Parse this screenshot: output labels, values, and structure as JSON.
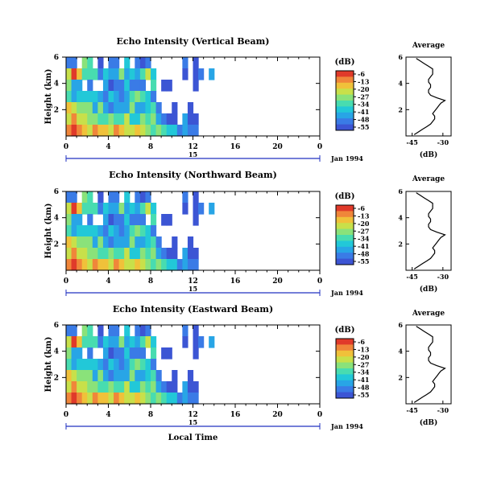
{
  "chart_data": [
    {
      "type": "heatmap",
      "title": "Echo Intensity (Vertical Beam)",
      "ylabel": "Height (km)",
      "yticks": [
        "6",
        "4",
        "2"
      ],
      "ylim": [
        0,
        6
      ],
      "xticks": [
        "0",
        "4",
        "8",
        "12",
        "16",
        "20",
        "0"
      ],
      "xlim": [
        0,
        24
      ],
      "day_label": "15",
      "date_label": "Jan 1994",
      "colorbar": {
        "unit": "(dB)",
        "labels": [
          "-6",
          "-13",
          "-20",
          "-27",
          "-34",
          "-41",
          "-48",
          "-55"
        ]
      },
      "profile": {
        "title": "Average",
        "xlabel": "(dB)",
        "xticks": [
          "-45",
          "-30"
        ],
        "yticks": [
          "6",
          "4",
          "2"
        ],
        "x": [
          -44,
          -42,
          -40,
          -38,
          -36,
          -35,
          -34,
          -34,
          -35,
          -34,
          -33,
          -32,
          -31,
          -29,
          -33,
          -36,
          -37,
          -37,
          -36,
          -36,
          -37,
          -37,
          -36,
          -35,
          -35,
          -35,
          -37,
          -39,
          -41,
          -43
        ],
        "y": [
          0.1,
          0.3,
          0.5,
          0.7,
          0.9,
          1.1,
          1.3,
          1.5,
          1.7,
          1.9,
          2.1,
          2.3,
          2.5,
          2.7,
          2.9,
          3.1,
          3.3,
          3.5,
          3.7,
          3.9,
          4.1,
          4.3,
          4.5,
          4.7,
          4.9,
          5.1,
          5.3,
          5.5,
          5.7,
          5.9
        ]
      },
      "cells": [
        [
          2,
          2,
          0,
          6,
          5,
          0,
          1,
          0,
          2,
          2,
          0,
          4,
          0,
          2,
          1,
          2,
          0,
          0,
          0,
          0,
          0,
          0,
          2,
          0,
          1,
          0,
          0,
          0,
          0,
          0,
          0,
          0,
          0,
          0,
          0,
          0,
          0,
          0,
          0,
          0,
          0,
          0,
          0,
          0,
          0,
          0,
          0,
          0
        ],
        [
          7,
          10,
          8,
          5,
          5,
          5,
          2,
          4,
          3,
          3,
          6,
          3,
          4,
          3,
          5,
          7,
          4,
          0,
          0,
          0,
          0,
          0,
          1,
          0,
          1,
          2,
          0,
          3,
          0,
          0,
          0,
          0,
          0,
          0,
          0,
          0,
          0,
          0,
          0,
          0,
          0,
          0,
          0,
          0,
          0,
          0,
          0,
          0
        ],
        [
          6,
          3,
          3,
          0,
          2,
          0,
          0,
          3,
          1,
          2,
          2,
          4,
          2,
          2,
          2,
          0,
          5,
          0,
          1,
          1,
          0,
          0,
          0,
          0,
          1,
          0,
          0,
          0,
          0,
          0,
          0,
          0,
          0,
          0,
          0,
          0,
          0,
          0,
          0,
          0,
          0,
          0,
          0,
          0,
          0,
          0,
          0,
          0
        ],
        [
          5,
          3,
          4,
          4,
          4,
          4,
          3,
          2,
          4,
          3,
          2,
          3,
          5,
          6,
          5,
          4,
          2,
          0,
          0,
          0,
          0,
          0,
          0,
          0,
          0,
          0,
          0,
          0,
          0,
          0,
          0,
          0,
          0,
          0,
          0,
          0,
          0,
          0,
          0,
          0,
          0,
          0,
          0,
          0,
          0,
          0,
          0,
          0
        ],
        [
          8,
          7,
          6,
          6,
          6,
          3,
          6,
          3,
          2,
          3,
          3,
          3,
          6,
          3,
          3,
          4,
          5,
          2,
          0,
          0,
          1,
          0,
          0,
          1,
          0,
          0,
          0,
          0,
          0,
          0,
          0,
          0,
          0,
          0,
          0,
          0,
          0,
          0,
          0,
          0,
          0,
          0,
          0,
          0,
          0,
          0,
          0,
          0
        ],
        [
          7,
          9,
          7,
          7,
          6,
          6,
          5,
          5,
          6,
          5,
          5,
          7,
          4,
          4,
          6,
          5,
          6,
          3,
          2,
          1,
          1,
          0,
          3,
          1,
          1,
          0,
          0,
          0,
          0,
          0,
          0,
          0,
          0,
          0,
          0,
          0,
          0,
          0,
          0,
          0,
          0,
          0,
          0,
          0,
          0,
          0,
          0,
          0
        ],
        [
          9,
          10,
          9,
          8,
          7,
          9,
          8,
          8,
          7,
          9,
          8,
          7,
          7,
          8,
          7,
          6,
          5,
          6,
          5,
          4,
          4,
          2,
          3,
          2,
          2,
          0,
          0,
          0,
          0,
          0,
          0,
          0,
          0,
          0,
          0,
          0,
          0,
          0,
          0,
          0,
          0,
          0,
          0,
          0,
          0,
          0,
          0,
          0
        ]
      ]
    },
    {
      "type": "heatmap",
      "title": "Echo Intensity (Northward Beam)",
      "ylabel": "Height (km)",
      "yticks": [
        "6",
        "4",
        "2"
      ],
      "ylim": [
        0,
        6
      ],
      "xticks": [
        "0",
        "4",
        "8",
        "12",
        "16",
        "20",
        "0"
      ],
      "xlim": [
        0,
        24
      ],
      "day_label": "15",
      "date_label": "Jan 1994",
      "colorbar": {
        "unit": "(dB)",
        "labels": [
          "-6",
          "-13",
          "-20",
          "-27",
          "-34",
          "-41",
          "-48",
          "-55"
        ]
      },
      "profile": {
        "title": "Average",
        "xlabel": "(dB)",
        "xticks": [
          "-45",
          "-30"
        ],
        "yticks": [
          "6",
          "4",
          "2"
        ],
        "x": [
          -44,
          -42,
          -40,
          -38,
          -36,
          -35,
          -34,
          -34,
          -35,
          -34,
          -33,
          -32,
          -31,
          -29,
          -33,
          -36,
          -37,
          -37,
          -36,
          -36,
          -37,
          -37,
          -36,
          -35,
          -35,
          -35,
          -37,
          -39,
          -41,
          -43
        ],
        "y": [
          0.1,
          0.3,
          0.5,
          0.7,
          0.9,
          1.1,
          1.3,
          1.5,
          1.7,
          1.9,
          2.1,
          2.3,
          2.5,
          2.7,
          2.9,
          3.1,
          3.3,
          3.5,
          3.7,
          3.9,
          4.1,
          4.3,
          4.5,
          4.7,
          4.9,
          5.1,
          5.3,
          5.5,
          5.7,
          5.9
        ]
      },
      "cells": [
        [
          2,
          2,
          0,
          6,
          5,
          0,
          1,
          0,
          2,
          2,
          0,
          4,
          0,
          2,
          1,
          2,
          0,
          0,
          0,
          0,
          0,
          0,
          2,
          0,
          1,
          0,
          0,
          0,
          0,
          0,
          0,
          0,
          0,
          0,
          0,
          0,
          0,
          0,
          0,
          0,
          0,
          0,
          0,
          0,
          0,
          0,
          0,
          0
        ],
        [
          7,
          10,
          8,
          5,
          5,
          5,
          2,
          4,
          3,
          3,
          6,
          3,
          4,
          3,
          5,
          7,
          4,
          0,
          0,
          0,
          0,
          0,
          1,
          0,
          1,
          2,
          0,
          3,
          0,
          0,
          0,
          0,
          0,
          0,
          0,
          0,
          0,
          0,
          0,
          0,
          0,
          0,
          0,
          0,
          0,
          0,
          0,
          0
        ],
        [
          6,
          3,
          3,
          0,
          2,
          0,
          0,
          3,
          1,
          2,
          2,
          4,
          2,
          2,
          2,
          0,
          5,
          0,
          1,
          1,
          0,
          0,
          0,
          0,
          1,
          0,
          0,
          0,
          0,
          0,
          0,
          0,
          0,
          0,
          0,
          0,
          0,
          0,
          0,
          0,
          0,
          0,
          0,
          0,
          0,
          0,
          0,
          0
        ],
        [
          5,
          3,
          4,
          4,
          4,
          4,
          3,
          2,
          4,
          3,
          2,
          3,
          5,
          6,
          5,
          4,
          2,
          0,
          0,
          0,
          0,
          0,
          0,
          0,
          0,
          0,
          0,
          0,
          0,
          0,
          0,
          0,
          0,
          0,
          0,
          0,
          0,
          0,
          0,
          0,
          0,
          0,
          0,
          0,
          0,
          0,
          0,
          0
        ],
        [
          8,
          7,
          6,
          6,
          6,
          3,
          6,
          3,
          2,
          3,
          3,
          3,
          6,
          3,
          3,
          4,
          5,
          2,
          0,
          0,
          1,
          0,
          0,
          1,
          0,
          0,
          0,
          0,
          0,
          0,
          0,
          0,
          0,
          0,
          0,
          0,
          0,
          0,
          0,
          0,
          0,
          0,
          0,
          0,
          0,
          0,
          0,
          0
        ],
        [
          7,
          9,
          7,
          7,
          6,
          6,
          5,
          5,
          6,
          5,
          5,
          7,
          4,
          4,
          6,
          5,
          6,
          3,
          2,
          1,
          1,
          0,
          3,
          1,
          1,
          0,
          0,
          0,
          0,
          0,
          0,
          0,
          0,
          0,
          0,
          0,
          0,
          0,
          0,
          0,
          0,
          0,
          0,
          0,
          0,
          0,
          0,
          0
        ],
        [
          9,
          10,
          9,
          8,
          7,
          9,
          8,
          8,
          7,
          9,
          8,
          7,
          7,
          8,
          7,
          6,
          5,
          6,
          5,
          4,
          4,
          2,
          3,
          2,
          2,
          0,
          0,
          0,
          0,
          0,
          0,
          0,
          0,
          0,
          0,
          0,
          0,
          0,
          0,
          0,
          0,
          0,
          0,
          0,
          0,
          0,
          0,
          0
        ]
      ]
    },
    {
      "type": "heatmap",
      "title": "Echo Intensity (Eastward Beam)",
      "ylabel": "Height (km)",
      "yticks": [
        "6",
        "4",
        "2"
      ],
      "ylim": [
        0,
        6
      ],
      "xticks": [
        "0",
        "4",
        "8",
        "12",
        "16",
        "20",
        "0"
      ],
      "xlim": [
        0,
        24
      ],
      "day_label": "15",
      "date_label": "Jan 1994",
      "xlabel": "Local Time",
      "colorbar": {
        "unit": "(dB)",
        "labels": [
          "-6",
          "-13",
          "-20",
          "-27",
          "-34",
          "-41",
          "-48",
          "-55"
        ]
      },
      "profile": {
        "title": "Average",
        "xlabel": "(dB)",
        "xticks": [
          "-45",
          "-30"
        ],
        "yticks": [
          "6",
          "4",
          "2"
        ],
        "x": [
          -44,
          -42,
          -40,
          -38,
          -36,
          -35,
          -34,
          -34,
          -35,
          -34,
          -33,
          -32,
          -31,
          -29,
          -33,
          -36,
          -37,
          -37,
          -36,
          -36,
          -37,
          -37,
          -36,
          -35,
          -35,
          -35,
          -37,
          -39,
          -41,
          -43
        ],
        "y": [
          0.1,
          0.3,
          0.5,
          0.7,
          0.9,
          1.1,
          1.3,
          1.5,
          1.7,
          1.9,
          2.1,
          2.3,
          2.5,
          2.7,
          2.9,
          3.1,
          3.3,
          3.5,
          3.7,
          3.9,
          4.1,
          4.3,
          4.5,
          4.7,
          4.9,
          5.1,
          5.3,
          5.5,
          5.7,
          5.9
        ]
      },
      "cells": [
        [
          2,
          2,
          0,
          6,
          5,
          0,
          1,
          0,
          2,
          2,
          0,
          4,
          0,
          2,
          1,
          2,
          0,
          0,
          0,
          0,
          0,
          0,
          2,
          0,
          1,
          0,
          0,
          0,
          0,
          0,
          0,
          0,
          0,
          0,
          0,
          0,
          0,
          0,
          0,
          0,
          0,
          0,
          0,
          0,
          0,
          0,
          0,
          0
        ],
        [
          7,
          10,
          8,
          5,
          5,
          5,
          2,
          4,
          3,
          3,
          6,
          3,
          4,
          3,
          5,
          7,
          4,
          0,
          0,
          0,
          0,
          0,
          1,
          0,
          1,
          2,
          0,
          3,
          0,
          0,
          0,
          0,
          0,
          0,
          0,
          0,
          0,
          0,
          0,
          0,
          0,
          0,
          0,
          0,
          0,
          0,
          0,
          0
        ],
        [
          6,
          3,
          3,
          0,
          2,
          0,
          0,
          3,
          1,
          2,
          2,
          4,
          2,
          2,
          2,
          0,
          5,
          0,
          1,
          1,
          0,
          0,
          0,
          0,
          1,
          0,
          0,
          0,
          0,
          0,
          0,
          0,
          0,
          0,
          0,
          0,
          0,
          0,
          0,
          0,
          0,
          0,
          0,
          0,
          0,
          0,
          0,
          0
        ],
        [
          5,
          3,
          4,
          4,
          4,
          4,
          3,
          2,
          4,
          3,
          2,
          3,
          5,
          6,
          5,
          4,
          2,
          0,
          0,
          0,
          0,
          0,
          0,
          0,
          0,
          0,
          0,
          0,
          0,
          0,
          0,
          0,
          0,
          0,
          0,
          0,
          0,
          0,
          0,
          0,
          0,
          0,
          0,
          0,
          0,
          0,
          0,
          0
        ],
        [
          8,
          7,
          6,
          6,
          6,
          3,
          6,
          3,
          2,
          3,
          3,
          3,
          6,
          3,
          3,
          4,
          5,
          2,
          0,
          0,
          1,
          0,
          0,
          1,
          0,
          0,
          0,
          0,
          0,
          0,
          0,
          0,
          0,
          0,
          0,
          0,
          0,
          0,
          0,
          0,
          0,
          0,
          0,
          0,
          0,
          0,
          0,
          0
        ],
        [
          7,
          9,
          7,
          7,
          6,
          6,
          5,
          5,
          6,
          5,
          5,
          7,
          4,
          4,
          6,
          5,
          6,
          3,
          2,
          1,
          1,
          0,
          3,
          1,
          1,
          0,
          0,
          0,
          0,
          0,
          0,
          0,
          0,
          0,
          0,
          0,
          0,
          0,
          0,
          0,
          0,
          0,
          0,
          0,
          0,
          0,
          0,
          0
        ],
        [
          9,
          10,
          9,
          8,
          7,
          9,
          8,
          8,
          7,
          9,
          8,
          7,
          7,
          8,
          7,
          6,
          5,
          6,
          5,
          4,
          4,
          2,
          3,
          2,
          2,
          0,
          0,
          0,
          0,
          0,
          0,
          0,
          0,
          0,
          0,
          0,
          0,
          0,
          0,
          0,
          0,
          0,
          0,
          0,
          0,
          0,
          0,
          0
        ]
      ]
    }
  ]
}
